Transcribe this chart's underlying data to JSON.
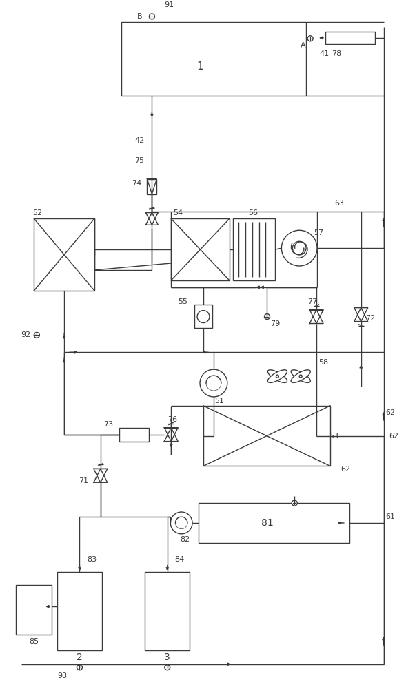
{
  "bg_color": "#ffffff",
  "line_color": "#3a3a3a",
  "lw": 1.0,
  "fig_width": 5.89,
  "fig_height": 10.0,
  "dpi": 100
}
